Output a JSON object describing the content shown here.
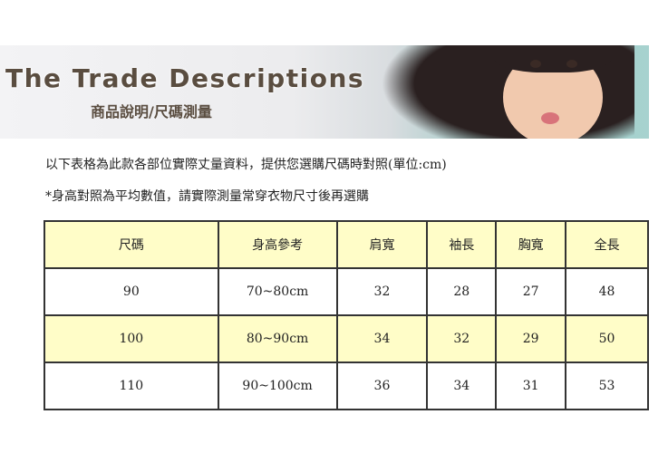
{
  "banner": {
    "title": "The Trade Descriptions",
    "subtitle": "商品說明/尺碼測量"
  },
  "notes": [
    "以下表格為此款各部位實際丈量資料，提供您選購尺碼時對照(單位:cm)",
    "*身高對照為平均數值，請實際測量常穿衣物尺寸後再選購"
  ],
  "table": {
    "headers": [
      "尺碼",
      "身高參考",
      "肩寬",
      "袖長",
      "胸寬",
      "全長"
    ],
    "rows": [
      [
        "90",
        "70~80cm",
        "32",
        "28",
        "27",
        "48"
      ],
      [
        "100",
        "80~90cm",
        "34",
        "32",
        "29",
        "50"
      ],
      [
        "110",
        "90~100cm",
        "36",
        "34",
        "31",
        "53"
      ]
    ]
  },
  "colors": {
    "header_fill": "#fffdc8",
    "border": "#4a2040"
  }
}
